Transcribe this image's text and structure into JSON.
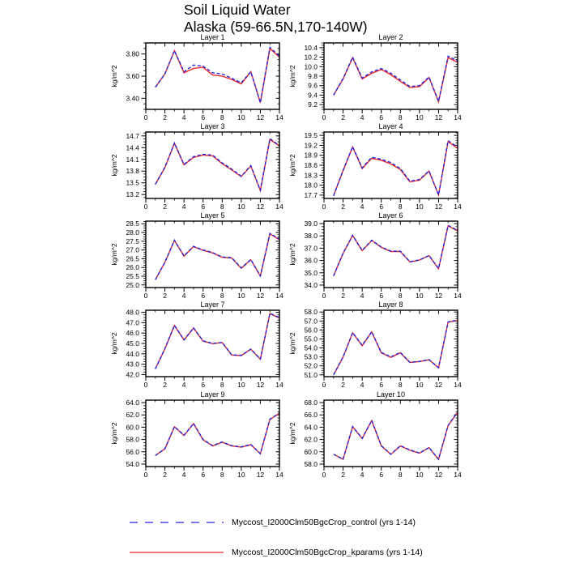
{
  "title": {
    "line1": "Soil Liquid Water",
    "line2": "Alaska (59-66.5N,170-140W)"
  },
  "series_colors": {
    "control": "#2323e0",
    "kparams": "#ee2a2a"
  },
  "axis_color": "#000000",
  "x_axis": {
    "xlim": [
      0,
      14
    ],
    "tick_values": [
      0,
      2,
      4,
      6,
      8,
      10,
      12,
      14
    ],
    "tick_labels": [
      "0",
      "2",
      "4",
      "6",
      "8",
      "10",
      "12",
      "14"
    ],
    "minor_values": [
      1,
      3,
      5,
      7,
      9,
      11,
      13
    ]
  },
  "chart_data": [
    {
      "type": "line",
      "title": "Layer 1",
      "ylabel": "kg/m^2",
      "ylim": [
        3.3,
        3.9
      ],
      "ytick_values": [
        3.4,
        3.6,
        3.8
      ],
      "ytick_labels": [
        "3.40",
        "3.60",
        "3.80"
      ],
      "x": [
        1,
        2,
        3,
        4,
        5,
        6,
        7,
        8,
        9,
        10,
        11,
        12,
        13,
        14
      ],
      "series": [
        {
          "name": "kparams",
          "values": [
            3.5,
            3.62,
            3.83,
            3.63,
            3.67,
            3.68,
            3.61,
            3.6,
            3.57,
            3.53,
            3.64,
            3.36,
            3.85,
            3.77
          ]
        },
        {
          "name": "control",
          "values": [
            3.5,
            3.62,
            3.83,
            3.64,
            3.7,
            3.69,
            3.63,
            3.62,
            3.58,
            3.54,
            3.64,
            3.36,
            3.86,
            3.78
          ]
        }
      ]
    },
    {
      "type": "line",
      "title": "Layer 2",
      "ylabel": "kg/m^2",
      "ylim": [
        9.1,
        10.5
      ],
      "ytick_values": [
        9.2,
        9.4,
        9.6,
        9.8,
        10.0,
        10.2,
        10.4
      ],
      "ytick_labels": [
        "9.2",
        "9.4",
        "9.6",
        "9.8",
        "10.0",
        "10.2",
        "10.4"
      ],
      "x": [
        1,
        2,
        3,
        4,
        5,
        6,
        7,
        8,
        9,
        10,
        11,
        12,
        13,
        14
      ],
      "series": [
        {
          "name": "kparams",
          "values": [
            9.4,
            9.74,
            10.19,
            9.74,
            9.86,
            9.94,
            9.83,
            9.69,
            9.56,
            9.58,
            9.77,
            9.26,
            10.19,
            10.09
          ]
        },
        {
          "name": "control",
          "values": [
            9.4,
            9.75,
            10.2,
            9.76,
            9.89,
            9.96,
            9.86,
            9.72,
            9.58,
            9.6,
            9.78,
            9.27,
            10.22,
            10.12
          ]
        }
      ]
    },
    {
      "type": "line",
      "title": "Layer 3",
      "ylabel": "kg/m^2",
      "ylim": [
        13.1,
        14.8
      ],
      "ytick_values": [
        13.2,
        13.5,
        13.8,
        14.1,
        14.4,
        14.7
      ],
      "ytick_labels": [
        "13.2",
        "13.5",
        "13.8",
        "14.1",
        "14.4",
        "14.7"
      ],
      "x": [
        1,
        2,
        3,
        4,
        5,
        6,
        7,
        8,
        9,
        10,
        11,
        12,
        13,
        14
      ],
      "series": [
        {
          "name": "kparams",
          "values": [
            13.46,
            13.89,
            14.51,
            13.96,
            14.15,
            14.21,
            14.19,
            13.99,
            13.83,
            13.66,
            13.93,
            13.3,
            14.61,
            14.44
          ]
        },
        {
          "name": "control",
          "values": [
            13.46,
            13.9,
            14.52,
            13.97,
            14.17,
            14.23,
            14.21,
            14.01,
            13.85,
            13.67,
            13.94,
            13.31,
            14.63,
            14.45
          ]
        }
      ]
    },
    {
      "type": "line",
      "title": "Layer 4",
      "ylabel": "kg/m^2",
      "ylim": [
        17.6,
        19.6
      ],
      "ytick_values": [
        17.7,
        18.0,
        18.3,
        18.6,
        18.9,
        19.2,
        19.5
      ],
      "ytick_labels": [
        "17.7",
        "18.0",
        "18.3",
        "18.6",
        "18.9",
        "19.2",
        "19.5"
      ],
      "x": [
        1,
        2,
        3,
        4,
        5,
        6,
        7,
        8,
        9,
        10,
        11,
        12,
        13,
        14
      ],
      "series": [
        {
          "name": "kparams",
          "values": [
            17.68,
            18.44,
            19.15,
            18.5,
            18.81,
            18.75,
            18.64,
            18.47,
            18.1,
            18.15,
            18.42,
            17.7,
            19.31,
            19.11
          ]
        },
        {
          "name": "control",
          "values": [
            17.68,
            18.45,
            19.16,
            18.52,
            18.84,
            18.78,
            18.68,
            18.5,
            18.12,
            18.17,
            18.43,
            17.71,
            19.34,
            19.14
          ]
        }
      ]
    },
    {
      "type": "line",
      "title": "Layer 5",
      "ylabel": "kg/m^2",
      "ylim": [
        24.85,
        28.65
      ],
      "ytick_values": [
        25.0,
        25.5,
        26.0,
        26.5,
        27.0,
        27.5,
        28.0,
        28.5
      ],
      "ytick_labels": [
        "25.0",
        "25.5",
        "26.0",
        "26.5",
        "27.0",
        "27.5",
        "28.0",
        "28.5"
      ],
      "x": [
        1,
        2,
        3,
        4,
        5,
        6,
        7,
        8,
        9,
        10,
        11,
        12,
        13,
        14
      ],
      "series": [
        {
          "name": "kparams",
          "values": [
            25.3,
            26.29,
            27.55,
            26.64,
            27.19,
            26.98,
            26.83,
            26.58,
            26.54,
            25.95,
            26.44,
            25.5,
            27.93,
            27.58
          ]
        },
        {
          "name": "control",
          "values": [
            25.3,
            26.3,
            27.56,
            26.66,
            27.21,
            27.0,
            26.85,
            26.6,
            26.56,
            25.97,
            26.45,
            25.52,
            27.95,
            27.62
          ]
        }
      ]
    },
    {
      "type": "line",
      "title": "Layer 6",
      "ylabel": "kg/m^2",
      "ylim": [
        33.8,
        39.2
      ],
      "ytick_values": [
        34.0,
        35.0,
        36.0,
        37.0,
        38.0,
        39.0
      ],
      "ytick_labels": [
        "34.0",
        "35.0",
        "36.0",
        "37.0",
        "38.0",
        "39.0"
      ],
      "x": [
        1,
        2,
        3,
        4,
        5,
        6,
        7,
        8,
        9,
        10,
        11,
        12,
        13,
        14
      ],
      "series": [
        {
          "name": "kparams",
          "values": [
            34.75,
            36.58,
            38.03,
            36.8,
            37.62,
            37.07,
            36.73,
            36.73,
            35.88,
            36.03,
            36.39,
            35.33,
            38.82,
            38.4
          ]
        },
        {
          "name": "control",
          "values": [
            34.75,
            36.6,
            38.05,
            36.82,
            37.65,
            37.1,
            36.76,
            36.76,
            35.9,
            36.05,
            36.4,
            35.35,
            38.85,
            38.45
          ]
        }
      ]
    },
    {
      "type": "line",
      "title": "Layer 7",
      "ylabel": "kg/m^2",
      "ylim": [
        41.8,
        48.2
      ],
      "ytick_values": [
        42.0,
        43.0,
        44.0,
        45.0,
        46.0,
        47.0,
        48.0
      ],
      "ytick_labels": [
        "42.0",
        "43.0",
        "44.0",
        "45.0",
        "46.0",
        "47.0",
        "48.0"
      ],
      "x": [
        1,
        2,
        3,
        4,
        5,
        6,
        7,
        8,
        9,
        10,
        11,
        12,
        13,
        14
      ],
      "series": [
        {
          "name": "kparams",
          "values": [
            42.55,
            44.48,
            46.73,
            45.33,
            46.48,
            45.22,
            44.98,
            45.08,
            43.88,
            43.83,
            44.44,
            43.48,
            47.88,
            47.45
          ]
        },
        {
          "name": "control",
          "values": [
            42.55,
            44.5,
            46.75,
            45.35,
            46.5,
            45.25,
            45.0,
            45.1,
            43.9,
            43.85,
            44.45,
            43.5,
            47.9,
            47.5
          ]
        }
      ]
    },
    {
      "type": "line",
      "title": "Layer 8",
      "ylabel": "kg/m^2",
      "ylim": [
        50.8,
        58.2
      ],
      "ytick_values": [
        51.0,
        52.0,
        53.0,
        54.0,
        55.0,
        56.0,
        57.0,
        58.0
      ],
      "ytick_labels": [
        "51.0",
        "52.0",
        "53.0",
        "54.0",
        "55.0",
        "56.0",
        "57.0",
        "58.0"
      ],
      "x": [
        1,
        2,
        3,
        4,
        5,
        6,
        7,
        8,
        9,
        10,
        11,
        12,
        13,
        14
      ],
      "series": [
        {
          "name": "kparams",
          "values": [
            51.0,
            52.98,
            55.68,
            54.25,
            55.78,
            53.45,
            52.95,
            53.45,
            52.38,
            52.48,
            52.68,
            51.78,
            56.88,
            57.05
          ]
        },
        {
          "name": "control",
          "values": [
            51.0,
            53.0,
            55.7,
            54.3,
            55.8,
            53.5,
            53.0,
            53.5,
            52.4,
            52.5,
            52.7,
            51.8,
            56.9,
            57.1
          ]
        }
      ]
    },
    {
      "type": "line",
      "title": "Layer 9",
      "ylabel": "kg/m^2",
      "ylim": [
        53.6,
        64.4
      ],
      "ytick_values": [
        54.0,
        56.0,
        58.0,
        60.0,
        62.0,
        64.0
      ],
      "ytick_labels": [
        "54.0",
        "56.0",
        "58.0",
        "60.0",
        "62.0",
        "64.0"
      ],
      "x": [
        1,
        2,
        3,
        4,
        5,
        6,
        7,
        8,
        9,
        10,
        11,
        12,
        13,
        14
      ],
      "series": [
        {
          "name": "kparams",
          "values": [
            55.4,
            56.48,
            60.08,
            58.65,
            60.58,
            57.95,
            56.95,
            57.55,
            56.95,
            56.75,
            57.15,
            55.68,
            61.25,
            62.25
          ]
        },
        {
          "name": "control",
          "values": [
            55.4,
            56.5,
            60.1,
            58.7,
            60.6,
            58.0,
            57.0,
            57.6,
            57.0,
            56.8,
            57.2,
            55.7,
            61.3,
            62.3
          ]
        }
      ]
    },
    {
      "type": "line",
      "title": "Layer 10",
      "ylabel": "kg/m^2",
      "ylim": [
        57.6,
        68.4
      ],
      "ytick_values": [
        58.0,
        60.0,
        62.0,
        64.0,
        66.0,
        68.0
      ],
      "ytick_labels": [
        "58.0",
        "60.0",
        "62.0",
        "64.0",
        "66.0",
        "68.0"
      ],
      "x": [
        1,
        2,
        3,
        4,
        5,
        6,
        7,
        8,
        9,
        10,
        11,
        12,
        13,
        14
      ],
      "series": [
        {
          "name": "kparams",
          "values": [
            59.6,
            58.78,
            64.08,
            62.15,
            65.08,
            60.95,
            59.58,
            60.95,
            60.25,
            59.78,
            60.68,
            58.75,
            64.25,
            66.45
          ]
        },
        {
          "name": "control",
          "values": [
            59.6,
            58.8,
            64.1,
            62.2,
            65.1,
            61.0,
            59.6,
            61.0,
            60.3,
            59.8,
            60.7,
            58.8,
            64.3,
            66.5
          ]
        }
      ]
    }
  ],
  "legend": [
    {
      "label": "Myccost_I2000Clm50BgcCrop_control (yrs 1-14)",
      "series": "control",
      "style": "dashed"
    },
    {
      "label": "Myccost_I2000Clm50BgcCrop_kparams (yrs 1-14)",
      "series": "kparams",
      "style": "solid"
    }
  ]
}
